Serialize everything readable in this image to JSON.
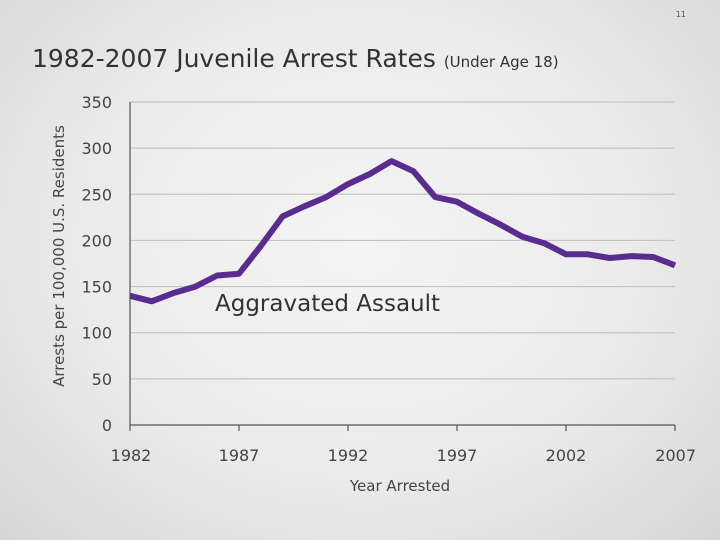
{
  "slide": {
    "number": "11",
    "title_main": "1982-2007 Juvenile Arrest Rates",
    "title_sub": "(Under Age 18)"
  },
  "chart_data": {
    "type": "line",
    "title": "1982-2007 Juvenile Arrest Rates (Under Age 18)",
    "xlabel": "Year Arrested",
    "ylabel": "Arrests per 100,000 U.S. Residents",
    "xlim": [
      1982,
      2007
    ],
    "ylim": [
      0,
      350
    ],
    "x_ticks": [
      1982,
      1987,
      1992,
      1997,
      2002,
      2007
    ],
    "y_ticks": [
      0,
      50,
      100,
      150,
      200,
      250,
      300,
      350
    ],
    "grid": true,
    "line_color": "#5b2c8f",
    "series": [
      {
        "name": "Aggravated Assault",
        "x": [
          1982,
          1983,
          1984,
          1985,
          1986,
          1987,
          1988,
          1989,
          1990,
          1991,
          1992,
          1993,
          1994,
          1995,
          1996,
          1997,
          1998,
          1999,
          2000,
          2001,
          2002,
          2003,
          2004,
          2005,
          2006,
          2007
        ],
        "y": [
          140,
          134,
          143,
          150,
          162,
          164,
          194,
          226,
          237,
          247,
          261,
          272,
          286,
          275,
          247,
          242,
          229,
          217,
          204,
          197,
          185,
          185,
          181,
          183,
          182,
          173
        ]
      }
    ],
    "annotations": [
      {
        "text": "Aggravated Assault"
      }
    ]
  }
}
